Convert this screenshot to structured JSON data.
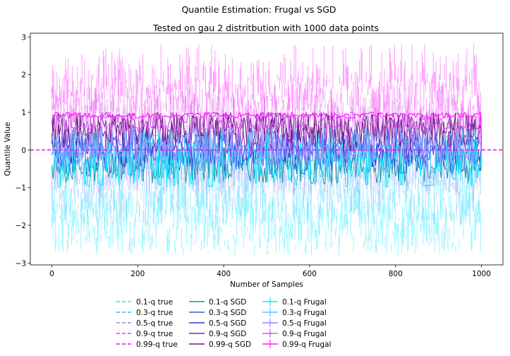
{
  "chart_data": {
    "type": "line",
    "suptitle": "Quantile Estimation: Frugal vs SGD",
    "title": "Tested on gau 2 distritbution with 1000 data points",
    "xlabel": "Number of Samples",
    "ylabel": "Quantile Value",
    "xlim": [
      -50,
      1050
    ],
    "ylim": [
      -3.05,
      3.1
    ],
    "x_ticks": [
      0,
      200,
      400,
      600,
      800,
      1000
    ],
    "y_ticks": [
      -3,
      -2,
      -1,
      0,
      1,
      2,
      3
    ],
    "legend_placement": "bottom-center",
    "true_lines": [
      {
        "name": "0.1-q true",
        "value": 0.0,
        "color": "#29e3f5"
      },
      {
        "name": "0.3-q true",
        "value": 0.0,
        "color": "#2fb5f0"
      },
      {
        "name": "0.5-q true",
        "value": 0.0,
        "color": "#9a86f5"
      },
      {
        "name": "0.9-q true",
        "value": 0.0,
        "color": "#ee33ee"
      },
      {
        "name": "0.99-q true",
        "value": 0.0,
        "color": "#ff00ff"
      }
    ],
    "sgd": [
      {
        "name": "0.1-q SGD",
        "color": "#1f8fa0",
        "low": -0.9,
        "high": 0.1,
        "final": 0.0
      },
      {
        "name": "0.3-q SGD",
        "color": "#1c6fd9",
        "low": -0.65,
        "high": 0.3,
        "final": 0.0
      },
      {
        "name": "0.5-q SGD",
        "color": "#3f2fe0",
        "low": -0.45,
        "high": 0.55,
        "final": 0.0
      },
      {
        "name": "0.9-q SGD",
        "color": "#8e1faa",
        "low": -0.1,
        "high": 0.95,
        "final": 0.0
      },
      {
        "name": "0.99-q SGD",
        "color": "#6a1d80",
        "low": 0.0,
        "high": 1.0,
        "final": 0.0
      }
    ],
    "frugal": [
      {
        "name": "0.1-q Frugal",
        "color": "#13eaff",
        "low": -1.0,
        "high": 0.5,
        "err_low": -2.8,
        "err_high": -0.6,
        "final": 0.0
      },
      {
        "name": "0.3-q Frugal",
        "color": "#5fc0ff",
        "low": -0.6,
        "high": 0.6,
        "err_low": -2.0,
        "err_high": 0.4,
        "final": 0.0
      },
      {
        "name": "0.5-q Frugal",
        "color": "#8c86ff",
        "low": -0.4,
        "high": 0.6,
        "err_low": -1.2,
        "err_high": 0.8,
        "final": 0.0
      },
      {
        "name": "0.9-q Frugal",
        "color": "#d05ae6",
        "low": 0.5,
        "high": 1.0,
        "err_low": 0.2,
        "err_high": 1.7,
        "final": 0.0
      },
      {
        "name": "0.99-q Frugal",
        "color": "#ff1aff",
        "low": 0.85,
        "high": 1.0,
        "err_low": 0.5,
        "err_high": 2.8,
        "final": 0.0
      }
    ],
    "x_range": [
      0,
      1000
    ],
    "n_points": 1000
  }
}
